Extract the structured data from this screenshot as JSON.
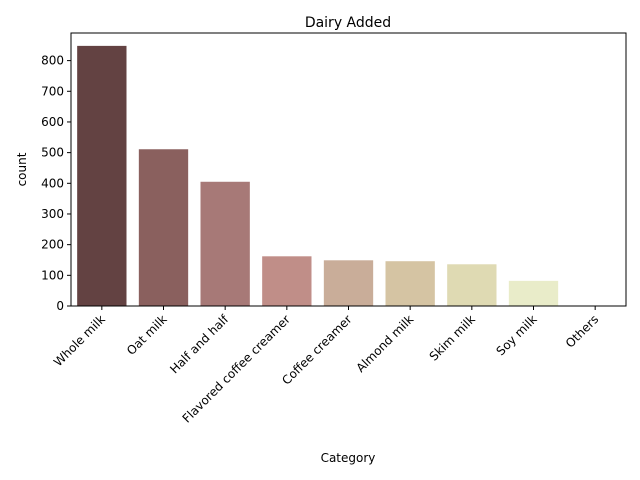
{
  "chart_data": {
    "type": "bar",
    "title": "Dairy Added",
    "xlabel": "Category",
    "ylabel": "count",
    "categories": [
      "Whole milk",
      "Oat milk",
      "Half and half",
      "Flavored coffee creamer",
      "Coffee creamer",
      "Almond milk",
      "Skim milk",
      "Soy milk",
      "Others"
    ],
    "values": [
      848,
      511,
      405,
      162,
      149,
      146,
      136,
      82,
      1
    ],
    "colors": [
      "#634242",
      "#8a605e",
      "#a77977",
      "#c08e88",
      "#c9ad99",
      "#d5c4a3",
      "#dfdab3",
      "#e9ecc9",
      "#f4f7e0"
    ],
    "ylim": [
      0,
      890
    ],
    "yticks": [
      0,
      100,
      200,
      300,
      400,
      500,
      600,
      700,
      800
    ],
    "grid": false
  }
}
